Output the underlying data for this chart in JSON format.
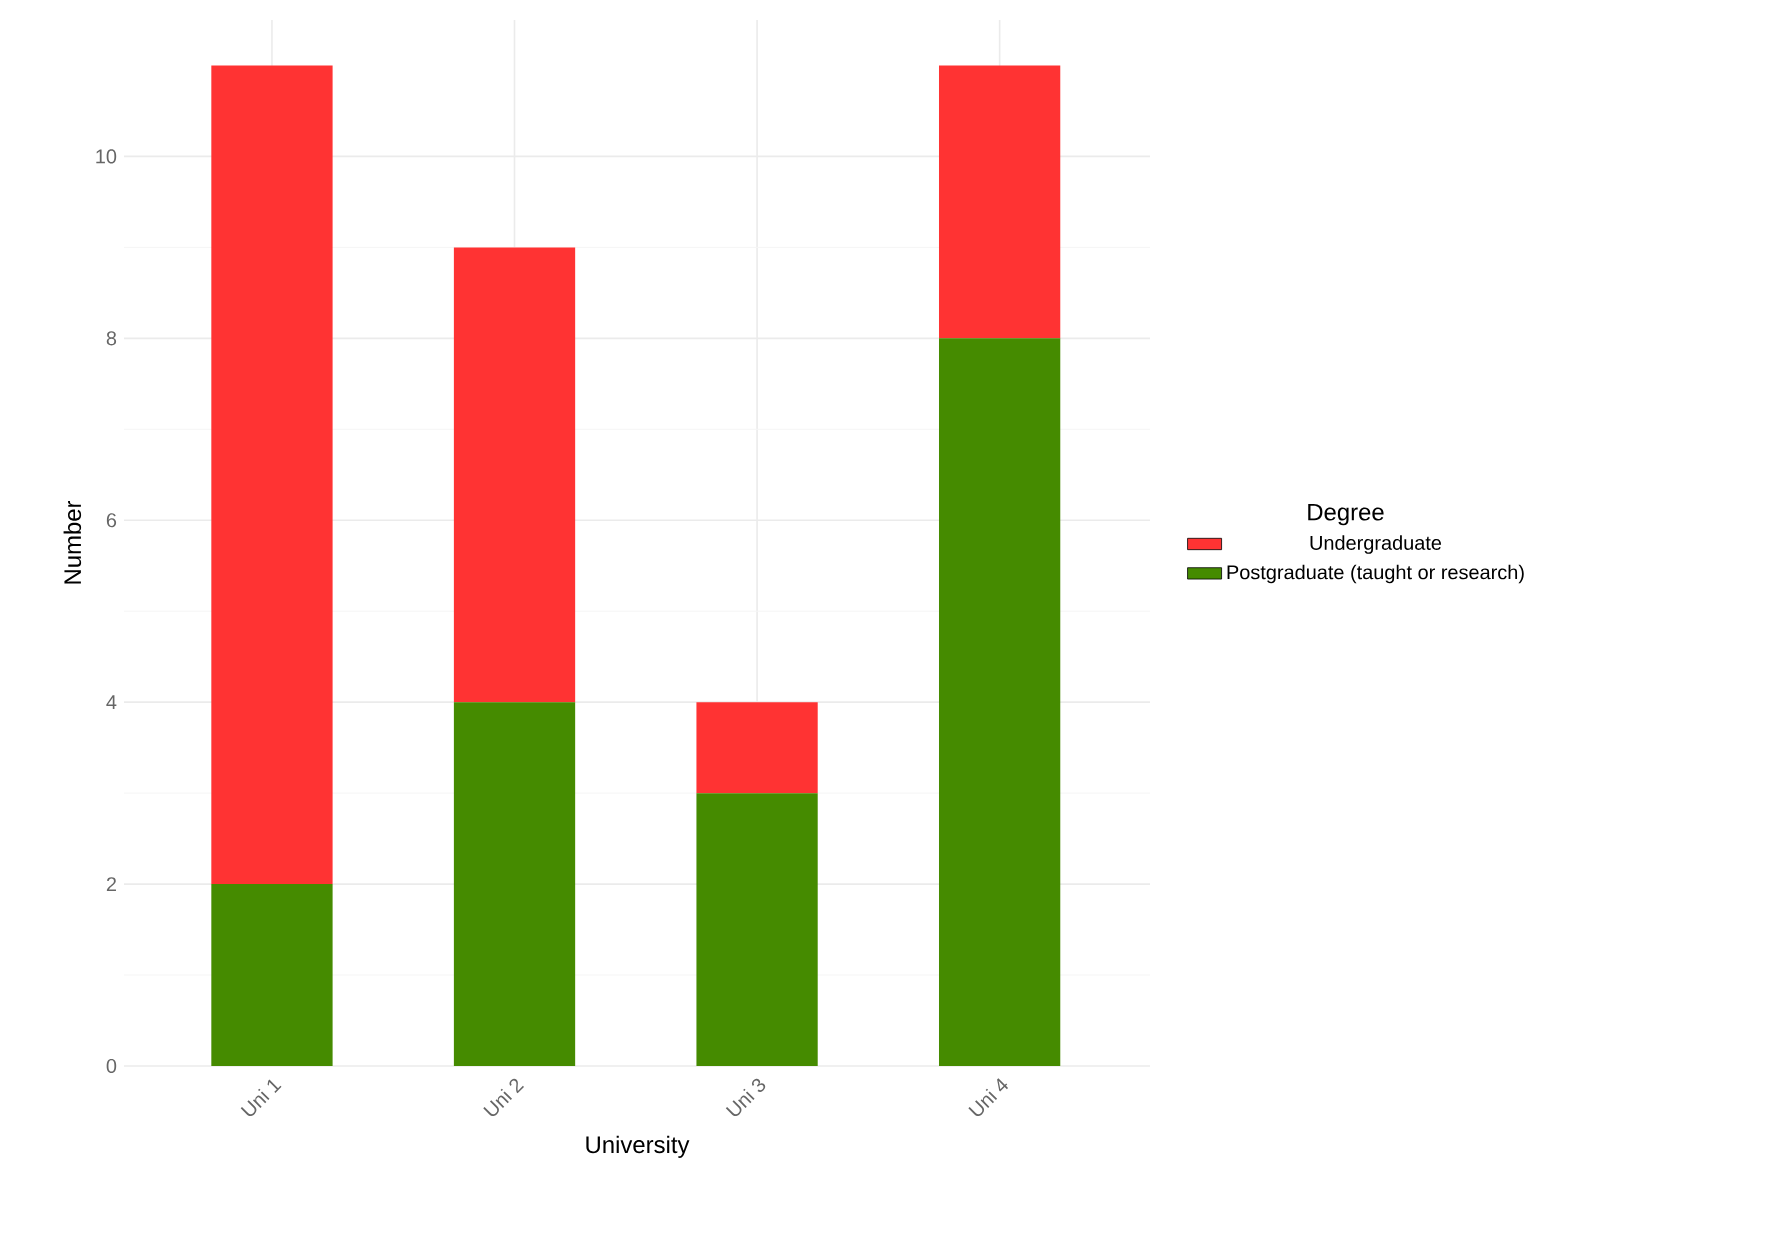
{
  "chart_data": {
    "type": "bar",
    "stacked": true,
    "xlabel": "University",
    "ylabel": "Number",
    "legend_title": "Degree",
    "categories": [
      "Uni 1",
      "Uni 2",
      "Uni 3",
      "Uni 4"
    ],
    "series": [
      {
        "name": "Postgraduate (taught or research)",
        "color": "#458b00",
        "values": [
          2,
          4,
          3,
          8
        ]
      },
      {
        "name": "Undergraduate",
        "color": "#ff3333",
        "values": [
          9,
          5,
          1,
          3
        ]
      }
    ],
    "ylim": [
      0,
      11.5
    ],
    "yticks": [
      0,
      2,
      4,
      6,
      8,
      10
    ],
    "grid": true,
    "legend": "right"
  }
}
